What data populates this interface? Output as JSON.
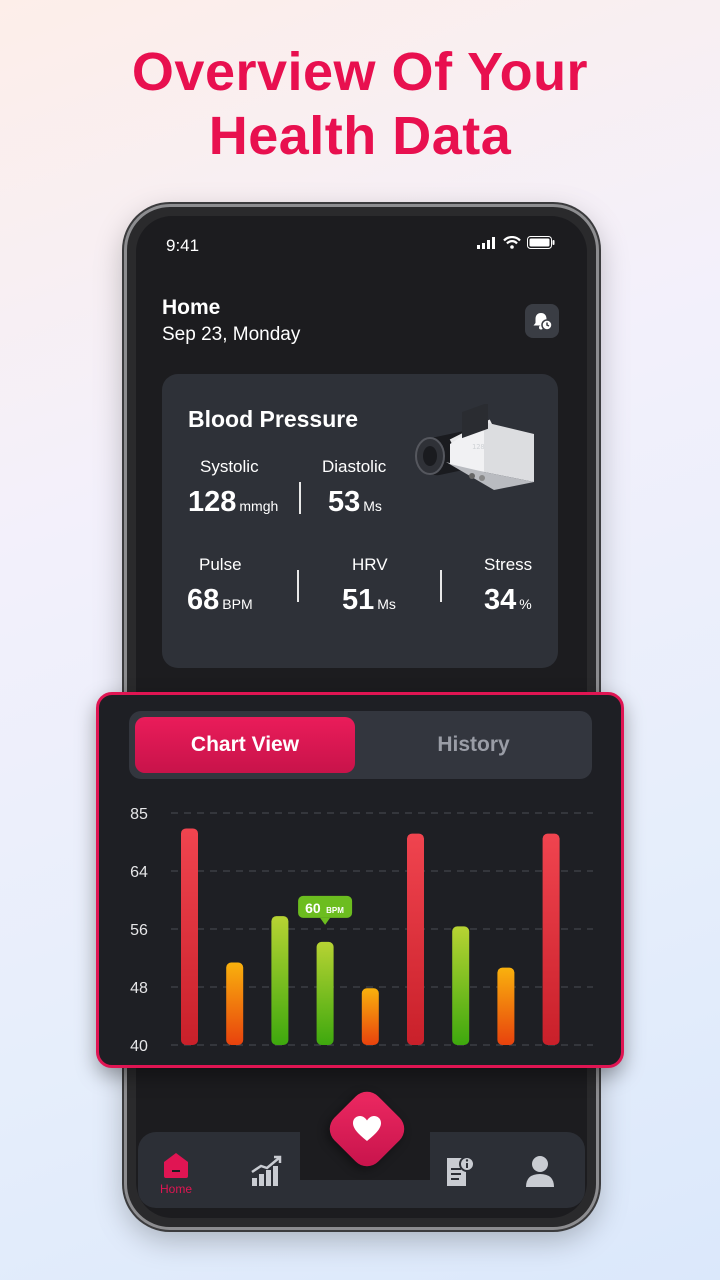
{
  "headline": {
    "line1": "Overview Of Your",
    "line2": "Health Data"
  },
  "status_bar": {
    "time": "9:41"
  },
  "header": {
    "title": "Home",
    "date": "Sep 23, Monday"
  },
  "blood_pressure": {
    "title": "Blood Pressure",
    "systolic": {
      "label": "Systolic",
      "value": "128",
      "unit": "mmgh"
    },
    "diastolic": {
      "label": "Diastolic",
      "value": "53",
      "unit": "Ms"
    },
    "pulse": {
      "label": "Pulse",
      "value": "68",
      "unit": "BPM"
    },
    "hrv": {
      "label": "HRV",
      "value": "51",
      "unit": "Ms"
    },
    "stress": {
      "label": "Stress",
      "value": "34",
      "unit": "%"
    }
  },
  "tabs": {
    "active": "Chart View",
    "inactive": "History"
  },
  "chart_data": {
    "type": "bar",
    "y_ticks": [
      "85",
      "64",
      "56",
      "48",
      "40"
    ],
    "values": [
      82,
      56,
      65,
      60,
      51,
      81,
      63,
      55,
      81
    ],
    "bar_colors": [
      "red",
      "orange",
      "green",
      "green",
      "orange",
      "red",
      "green",
      "orange",
      "red"
    ],
    "tooltip": {
      "bar_index": 3,
      "value": "60",
      "unit": "BPM"
    },
    "grid": true
  },
  "bottom_nav": {
    "home_label": "Home"
  },
  "colors": {
    "accent": "#e01553",
    "green": "#6cbd1f",
    "orange": "#f5a20c",
    "red": "#e63a45"
  }
}
